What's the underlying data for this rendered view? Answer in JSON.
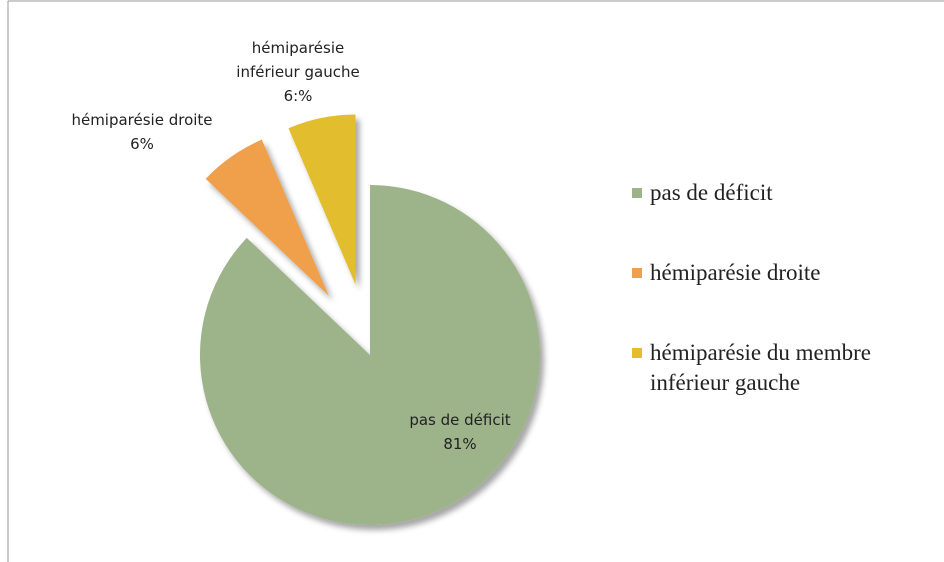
{
  "chart_data": {
    "type": "pie",
    "categories": [
      "pas de déficit",
      "hémiparésie droite",
      "hémiparésie du membre inférieur gauche"
    ],
    "values": [
      81,
      6,
      6
    ],
    "value_labels": [
      "81%",
      "6%",
      "6:%"
    ],
    "data_label_names": [
      "pas de déficit",
      "hémiparésie droite",
      "hémiparésie inférieur gauche"
    ],
    "colors": [
      "#9db38a",
      "#f0a04b",
      "#e2bd2f"
    ],
    "exploded": [
      false,
      true,
      true
    ],
    "legend": "right"
  }
}
